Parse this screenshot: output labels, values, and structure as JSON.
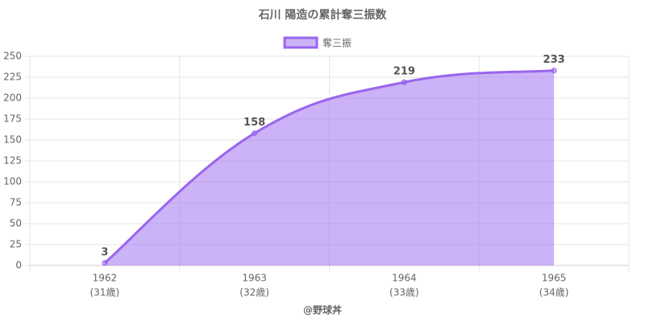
{
  "chart_data": {
    "type": "line",
    "title": "石川 陽造の累計奪三振数",
    "x_label": "@野球丼",
    "categories": [
      "1962",
      "1963",
      "1964",
      "1965"
    ],
    "category_sublabels": [
      "(31歳)",
      "(32歳)",
      "(33歳)",
      "(34歳)"
    ],
    "series": [
      {
        "name": "奪三振",
        "color": "#9966ee",
        "fill": "rgba(153,102,238,0.5)",
        "values": [
          3,
          158,
          219,
          233
        ]
      }
    ],
    "ylim": [
      0,
      250
    ],
    "yticks": [
      0,
      25,
      50,
      75,
      100,
      125,
      150,
      175,
      200,
      225,
      250
    ],
    "grid": true,
    "legend": "top",
    "data_labels": true
  }
}
